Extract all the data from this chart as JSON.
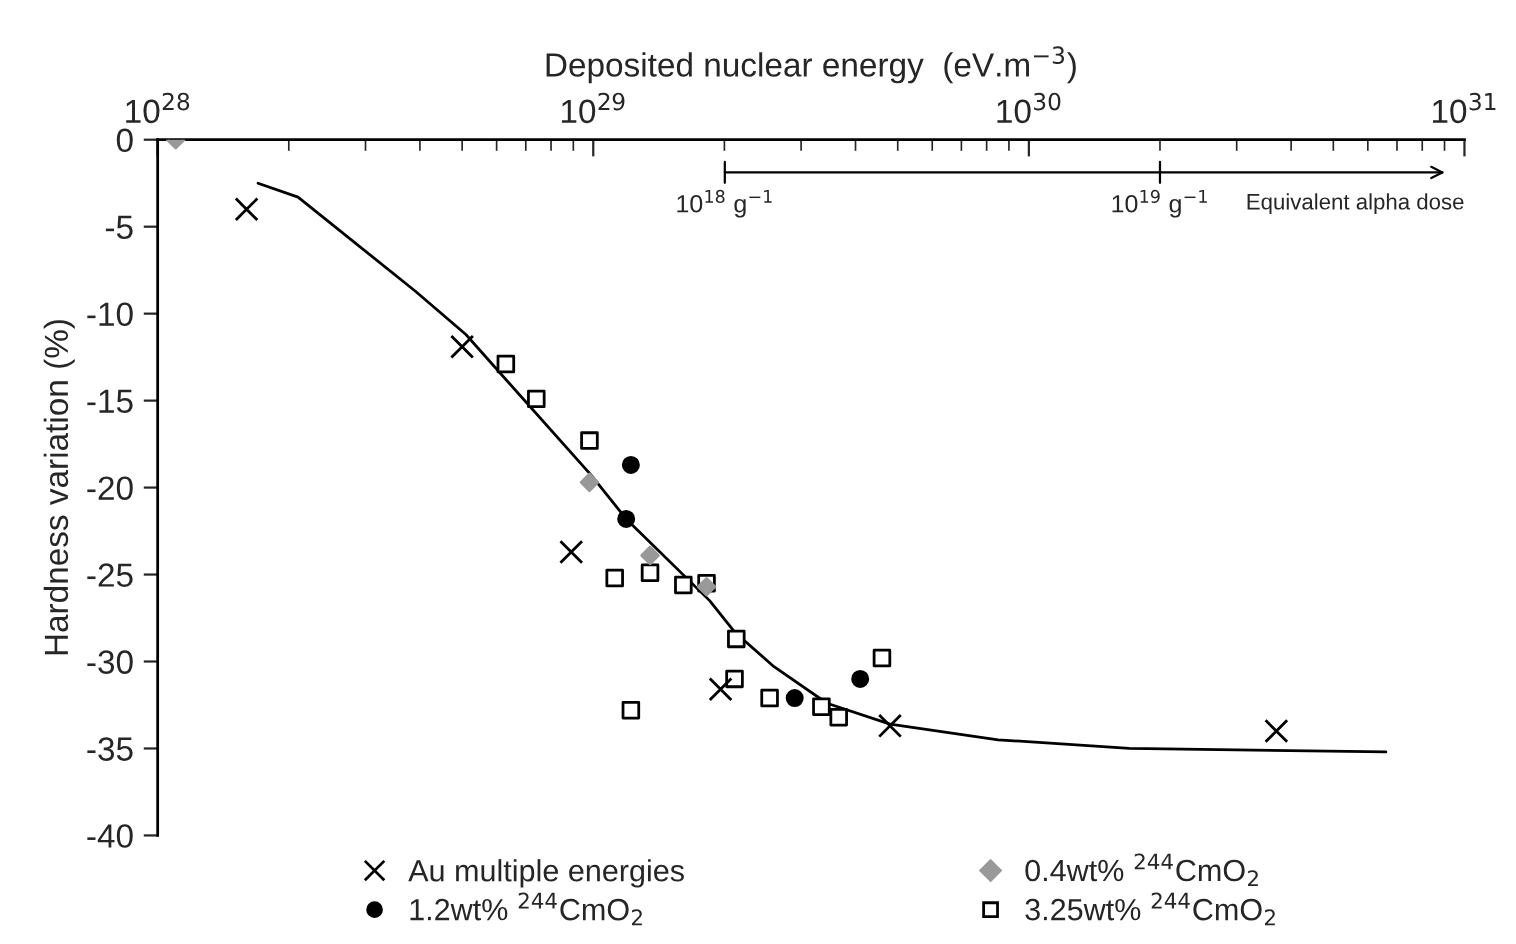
{
  "chart_data": {
    "type": "scatter",
    "xlabel": "Deposited nuclear energy  (eV.m$^{−3}$)",
    "ylabel": "Hardness variation (%)",
    "log": "x",
    "xlim": [
      1e+28,
      1e+31
    ],
    "xticks": [
      {
        "value": 1e+28,
        "label": "10$^{28}$"
      },
      {
        "value": 1e+29,
        "label": "10$^{29}$"
      },
      {
        "value": 1e+30,
        "label": "10$^{30}$"
      },
      {
        "value": 1e+31,
        "label": "10$^{31}$"
      }
    ],
    "ylim": [
      -40,
      0
    ],
    "yticks": [
      0,
      -5,
      -10,
      -15,
      -20,
      -25,
      -30,
      -35,
      -40
    ],
    "grid": false,
    "legend": "bottom",
    "series": [
      {
        "name": "Au multiple energies",
        "marker": "cross",
        "color": "#000000",
        "x": [
          1.6e+28,
          5e+28,
          8.9e+28,
          1.96e+29,
          4.8e+29,
          3.7e+30
        ],
        "values": [
          -4.0,
          -11.9,
          -23.7,
          -31.6,
          -33.7,
          -34.0
        ]
      },
      {
        "name": "0.4wt% $^{244}$CmO$_{2}$",
        "marker": "diamond",
        "color": "#999999",
        "x": [
          1.1e+28,
          9.8e+28,
          1.35e+29,
          1.82e+29
        ],
        "values": [
          0,
          -19.7,
          -23.9,
          -25.7
        ]
      },
      {
        "name": "1.2wt% $^{244}$CmO$_{2}$",
        "marker": "circle",
        "color": "#000000",
        "x": [
          1.22e+29,
          1.19e+29,
          2.9e+29,
          4.1e+29
        ],
        "values": [
          -18.7,
          -21.8,
          -32.1,
          -31.0
        ]
      },
      {
        "name": "3.25wt% $^{244}$CmO$_{2}$",
        "marker": "square",
        "color": "#000000",
        "x": [
          6.3e+28,
          7.4e+28,
          9.8e+28,
          1.12e+29,
          1.35e+29,
          1.61e+29,
          1.82e+29,
          2.13e+29,
          2.11e+29,
          1.22e+29,
          2.54e+29,
          3.34e+29,
          3.66e+29,
          4.6e+29
        ],
        "values": [
          -12.9,
          -14.9,
          -17.3,
          -25.2,
          -24.9,
          -25.6,
          -25.5,
          -28.7,
          -31.0,
          -32.8,
          -32.1,
          -32.6,
          -33.2,
          -29.8
        ]
      },
      {
        "type": "line",
        "marker": "none",
        "color": "#000000",
        "x": [
          1.7e+28,
          2.1e+28,
          3.9e+28,
          5.1e+28,
          9.9e+28,
          1.19e+29,
          1.85e+29,
          2.11e+29,
          2.6e+29,
          3.44e+29,
          4.8e+29,
          8.5e+29,
          1.7e+30,
          6.6e+30
        ],
        "values": [
          -2.5,
          -3.3,
          -8.7,
          -11.2,
          -19.3,
          -21.8,
          -26.5,
          -28.3,
          -30.3,
          -32.4,
          -33.6,
          -34.5,
          -35.0,
          -35.2
        ]
      }
    ],
    "annotations": [
      "10$^{18}$ g$^{−1}$",
      "10$^{19}$ g$^{−1}$",
      "Equivalent alpha dose"
    ]
  }
}
